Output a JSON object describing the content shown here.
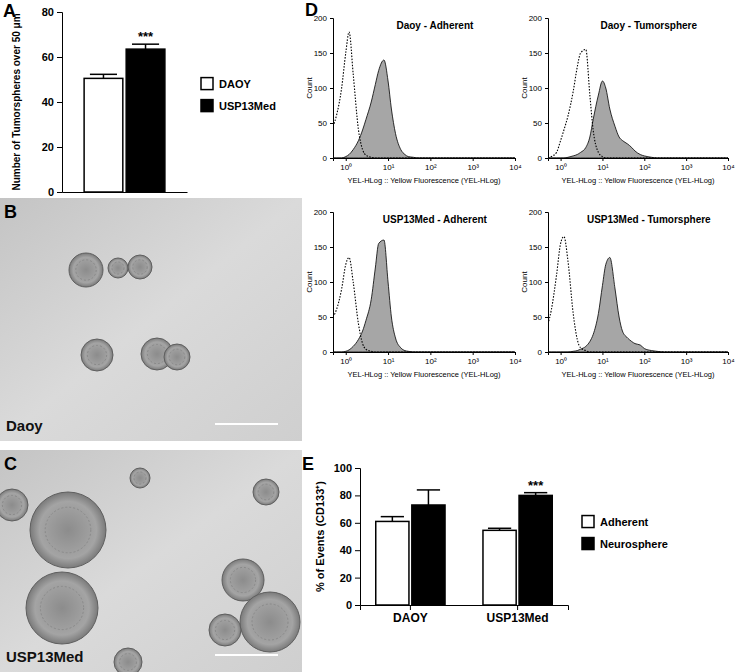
{
  "chart_data": [
    {
      "type": "bar",
      "categories": [
        null
      ],
      "series": [
        {
          "name": "DAOY",
          "color": "#ffffff",
          "values": [
            50.5
          ],
          "errors": [
            1.8
          ]
        },
        {
          "name": "USP13Med",
          "color": "#000000",
          "values": [
            63.5
          ],
          "errors": [
            2.2
          ]
        }
      ],
      "ylabel": "Number of Tumorspheres over 50 μm",
      "ylim": [
        0,
        80
      ],
      "yticks": [
        0,
        20,
        40,
        60,
        80
      ],
      "legend": "right",
      "annotations": [
        {
          "text": "***",
          "series": "USP13Med",
          "category": null
        }
      ]
    },
    {
      "type": "line",
      "title": "Daoy - Adherent",
      "xlabel": "YEL-HLog :: Yellow Fluorescence (YEL-HLog)",
      "ylabel": "Count",
      "log": "x",
      "x": [
        0.5,
        0.6,
        0.8,
        1,
        1.2,
        1.5,
        2,
        2.5,
        3,
        4,
        5,
        6,
        8,
        10,
        12,
        15,
        20,
        25,
        30,
        40,
        50,
        60,
        80,
        100,
        150,
        200,
        300,
        500,
        1000,
        10000
      ],
      "series": [
        {
          "type": "area",
          "color": "#a6a6a6",
          "values": [
            0,
            0,
            0,
            2,
            5,
            12,
            25,
            40,
            55,
            80,
            105,
            125,
            140,
            110,
            70,
            35,
            12,
            5,
            2,
            1,
            0,
            0,
            0,
            0,
            0,
            0,
            0,
            0,
            0,
            0
          ]
        },
        {
          "type": "line",
          "line_style": "dotted",
          "color": "#000000",
          "values": [
            45,
            60,
            100,
            150,
            180,
            120,
            40,
            12,
            4,
            1,
            0,
            0,
            0,
            0,
            0,
            0,
            0,
            0,
            0,
            0,
            0,
            0,
            0,
            0,
            0,
            0,
            0,
            0,
            0,
            0
          ]
        }
      ],
      "xlim": [
        0.5,
        10000
      ],
      "xticks": [
        {
          "value": 1,
          "label": "10⁰"
        },
        {
          "value": 10,
          "label": "10¹"
        },
        {
          "value": 100,
          "label": "10²"
        },
        {
          "value": 1000,
          "label": "10³"
        },
        {
          "value": 10000,
          "label": "10⁴"
        }
      ],
      "ylim": [
        0,
        200
      ],
      "yticks": [
        0,
        50,
        100,
        150,
        200
      ]
    },
    {
      "type": "line",
      "title": "Daoy - Tumorsphere",
      "xlabel": "YEL-HLog :: Yellow Fluorescence (YEL-HLog)",
      "ylabel": "Count",
      "log": "x",
      "x": [
        0.5,
        0.6,
        0.8,
        1,
        1.2,
        1.5,
        2,
        2.5,
        3,
        4,
        5,
        6,
        8,
        10,
        12,
        15,
        20,
        25,
        30,
        40,
        50,
        60,
        80,
        100,
        150,
        200,
        300,
        500,
        1000,
        10000
      ],
      "series": [
        {
          "type": "area",
          "color": "#a6a6a6",
          "values": [
            0,
            0,
            0,
            0,
            0,
            1,
            3,
            5,
            8,
            15,
            30,
            55,
            90,
            110,
            100,
            70,
            45,
            30,
            25,
            20,
            15,
            10,
            5,
            3,
            1,
            0,
            0,
            0,
            0,
            0
          ]
        },
        {
          "type": "line",
          "line_style": "dotted",
          "color": "#000000",
          "values": [
            0,
            2,
            8,
            25,
            40,
            60,
            95,
            130,
            150,
            155,
            90,
            40,
            8,
            2,
            0,
            0,
            0,
            0,
            0,
            0,
            0,
            0,
            0,
            0,
            0,
            0,
            0,
            0,
            0,
            0
          ]
        }
      ],
      "xlim": [
        0.5,
        10000
      ],
      "xticks": [
        {
          "value": 1,
          "label": "10⁰"
        },
        {
          "value": 10,
          "label": "10¹"
        },
        {
          "value": 100,
          "label": "10²"
        },
        {
          "value": 1000,
          "label": "10³"
        },
        {
          "value": 10000,
          "label": "10⁴"
        }
      ],
      "ylim": [
        0,
        200
      ],
      "yticks": [
        0,
        50,
        100,
        150,
        200
      ]
    },
    {
      "type": "line",
      "title": "USP13Med - Adherent",
      "xlabel": "YEL-HLog :: Yellow Fluorescence (YEL-HLog)",
      "ylabel": "Count",
      "log": "x",
      "x": [
        0.5,
        0.6,
        0.8,
        1,
        1.2,
        1.5,
        2,
        2.5,
        3,
        4,
        5,
        6,
        8,
        10,
        12,
        15,
        20,
        25,
        30,
        40,
        50,
        60,
        80,
        100,
        150,
        200,
        300,
        500,
        1000,
        10000
      ],
      "series": [
        {
          "type": "area",
          "color": "#a6a6a6",
          "values": [
            0,
            0,
            0,
            1,
            3,
            8,
            18,
            30,
            45,
            75,
            120,
            155,
            160,
            100,
            50,
            20,
            6,
            2,
            1,
            0,
            0,
            0,
            0,
            0,
            0,
            0,
            0,
            0,
            0,
            0
          ]
        },
        {
          "type": "line",
          "line_style": "dotted",
          "color": "#000000",
          "values": [
            50,
            60,
            90,
            125,
            135,
            100,
            40,
            12,
            4,
            1,
            0,
            0,
            0,
            0,
            0,
            0,
            0,
            0,
            0,
            0,
            0,
            0,
            0,
            0,
            0,
            0,
            0,
            0,
            0,
            0
          ]
        }
      ],
      "xlim": [
        0.5,
        10000
      ],
      "xticks": [
        {
          "value": 1,
          "label": "10⁰"
        },
        {
          "value": 10,
          "label": "10¹"
        },
        {
          "value": 100,
          "label": "10²"
        },
        {
          "value": 1000,
          "label": "10³"
        },
        {
          "value": 10000,
          "label": "10⁴"
        }
      ],
      "ylim": [
        0,
        200
      ],
      "yticks": [
        0,
        50,
        100,
        150,
        200
      ]
    },
    {
      "type": "line",
      "title": "USP13Med - Tumorsphere",
      "xlabel": "YEL-HLog :: Yellow Fluorescence (YEL-HLog)",
      "ylabel": "Count",
      "log": "x",
      "x": [
        0.5,
        0.6,
        0.8,
        1,
        1.2,
        1.5,
        2,
        2.5,
        3,
        4,
        5,
        6,
        8,
        10,
        12,
        15,
        20,
        25,
        30,
        40,
        50,
        60,
        80,
        100,
        150,
        200,
        300,
        500,
        1000,
        10000
      ],
      "series": [
        {
          "type": "area",
          "color": "#a6a6a6",
          "values": [
            0,
            0,
            0,
            0,
            0,
            0,
            1,
            2,
            4,
            8,
            15,
            25,
            55,
            95,
            125,
            135,
            90,
            50,
            30,
            20,
            15,
            12,
            10,
            5,
            2,
            1,
            0,
            0,
            0,
            0
          ]
        },
        {
          "type": "line",
          "line_style": "dotted",
          "color": "#000000",
          "values": [
            40,
            60,
            110,
            155,
            165,
            130,
            55,
            18,
            6,
            2,
            0,
            0,
            0,
            0,
            0,
            0,
            0,
            0,
            0,
            0,
            0,
            0,
            0,
            0,
            0,
            0,
            0,
            0,
            0,
            0
          ]
        }
      ],
      "xlim": [
        0.5,
        10000
      ],
      "xticks": [
        {
          "value": 1,
          "label": "10⁰"
        },
        {
          "value": 10,
          "label": "10¹"
        },
        {
          "value": 100,
          "label": "10²"
        },
        {
          "value": 1000,
          "label": "10³"
        },
        {
          "value": 10000,
          "label": "10⁴"
        }
      ],
      "ylim": [
        0,
        200
      ],
      "yticks": [
        0,
        50,
        100,
        150,
        200
      ]
    },
    {
      "type": "bar",
      "categories": [
        "DAOY",
        "USP13Med"
      ],
      "series": [
        {
          "name": "Adherent",
          "color": "#ffffff",
          "values": [
            61,
            54.5
          ],
          "errors": [
            3.5,
            1.5
          ]
        },
        {
          "name": "Neurosphere",
          "color": "#000000",
          "values": [
            73,
            80
          ],
          "errors": [
            11,
            2
          ]
        }
      ],
      "ylabel": "% of Events (CD133⁺)",
      "ylim": [
        0,
        100
      ],
      "yticks": [
        0,
        20,
        40,
        60,
        80,
        100
      ],
      "legend": "right",
      "annotations": [
        {
          "text": "***",
          "series": "Neurosphere",
          "category": "USP13Med"
        }
      ]
    }
  ],
  "panel_letters": [
    "A",
    "B",
    "C",
    "D",
    "E"
  ],
  "micrographs": [
    {
      "label": "Daoy"
    },
    {
      "label": "USP13Med"
    }
  ]
}
